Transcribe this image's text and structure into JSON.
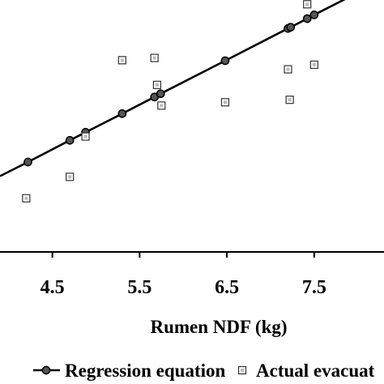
{
  "chart_data": {
    "type": "scatter",
    "xlabel": "Rumen NDF (kg)",
    "ylabel": "",
    "xlim": [
      3.9,
      8.3
    ],
    "ylim": [
      0,
      10
    ],
    "x_ticks": [
      4.5,
      5.5,
      6.5,
      7.5
    ],
    "x_tick_labels": [
      "4.5",
      "5.5",
      "6.5",
      "7.5"
    ],
    "grid": false,
    "legend_position": "bottom",
    "series": [
      {
        "name": "Regression equation",
        "kind": "line-with-markers",
        "color": "#000000",
        "x": [
          3.9,
          4.22,
          4.7,
          4.88,
          5.3,
          5.67,
          5.74,
          6.48,
          7.2,
          7.23,
          7.42,
          7.5,
          8.3
        ],
        "y": [
          3.01,
          3.57,
          4.43,
          4.75,
          5.49,
          6.15,
          6.28,
          7.59,
          8.87,
          8.92,
          9.26,
          9.41,
          10.82
        ]
      },
      {
        "name": "Actual evacuat",
        "kind": "scatter",
        "marker": "open-square",
        "color": "#000000",
        "x": [
          4.2,
          4.7,
          4.88,
          5.3,
          5.67,
          5.7,
          5.75,
          6.48,
          7.2,
          7.22,
          7.42,
          7.5
        ],
        "y": [
          2.13,
          2.98,
          4.58,
          7.61,
          7.7,
          6.63,
          5.81,
          5.94,
          7.25,
          6.04,
          9.83,
          7.43
        ]
      }
    ]
  }
}
